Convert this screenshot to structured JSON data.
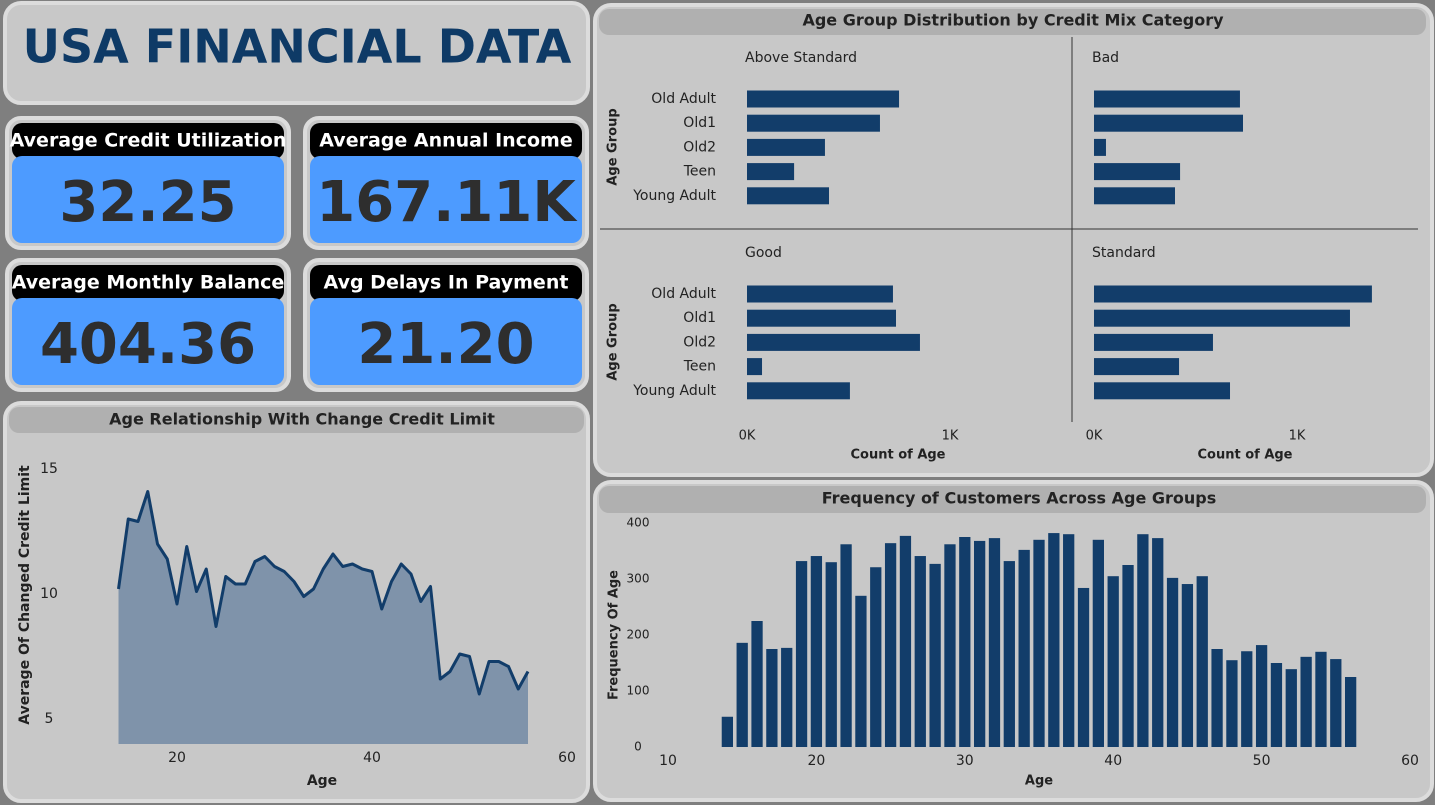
{
  "header": {
    "title": "USA FINANCIAL DATA"
  },
  "kpis": [
    {
      "label": "Average Credit Utilization",
      "value": "32.25"
    },
    {
      "label": "Average Annual Income",
      "value": "167.11K"
    },
    {
      "label": "Average Monthly Balance",
      "value": "404.36"
    },
    {
      "label": "Avg Delays In Payment",
      "value": "21.20"
    }
  ],
  "chart_data": [
    {
      "type": "barh",
      "title": "Age Group Distribution by Credit Mix Category",
      "xlabel": "Count of Age",
      "ylabel": "Age Group",
      "color": "#123d6a",
      "categories": [
        "Old Adult",
        "Old1",
        "Old2",
        "Teen",
        "Young Adult"
      ],
      "series": [
        {
          "name": "Above Standard",
          "values": [
            749,
            655,
            384,
            232,
            404
          ]
        },
        {
          "name": "Bad",
          "values": [
            719,
            734,
            59,
            424,
            399
          ]
        },
        {
          "name": "Good",
          "values": [
            719,
            734,
            852,
            74,
            507
          ]
        },
        {
          "name": "Standard",
          "values": [
            1369,
            1261,
            586,
            419,
            670
          ]
        }
      ],
      "xlim": [
        0,
        1600
      ],
      "xticks": [
        {
          "value": 0,
          "label": "0K"
        },
        {
          "value": 1000,
          "label": "1K"
        }
      ]
    },
    {
      "type": "area",
      "title": "Age Relationship With Change Credit Limit",
      "xlabel": "Age",
      "ylabel": "Average Of Changed Credit Limit",
      "color": "#123d6a",
      "fill": "#7f93aa",
      "x": [
        14,
        15,
        16,
        17,
        18,
        19,
        20,
        21,
        22,
        23,
        24,
        25,
        26,
        27,
        28,
        29,
        30,
        31,
        32,
        33,
        34,
        35,
        36,
        37,
        38,
        39,
        40,
        41,
        42,
        43,
        44,
        45,
        46,
        47,
        48,
        49,
        50,
        51,
        52,
        53,
        54,
        55,
        56
      ],
      "values": [
        10.2,
        13.0,
        12.9,
        14.1,
        12.0,
        11.4,
        9.6,
        11.9,
        10.1,
        11.0,
        8.7,
        10.7,
        10.4,
        10.4,
        11.3,
        11.5,
        11.1,
        10.9,
        10.5,
        9.9,
        10.2,
        11.0,
        11.6,
        11.1,
        11.2,
        11.0,
        10.9,
        9.4,
        10.5,
        11.2,
        10.8,
        9.7,
        10.3,
        6.6,
        6.9,
        7.6,
        7.5,
        6.0,
        7.3,
        7.3,
        7.1,
        6.2,
        6.9
      ],
      "xlim": [
        13,
        60
      ],
      "xticks": [
        20,
        40,
        60
      ],
      "ylim": [
        4,
        15.5
      ],
      "yticks": [
        5,
        10,
        15
      ]
    },
    {
      "type": "bar",
      "title": "Frequency of Customers Across Age Groups",
      "xlabel": "Age",
      "ylabel": "Frequency Of Age",
      "color": "#123d6a",
      "x": [
        14,
        15,
        16,
        17,
        18,
        19,
        20,
        21,
        22,
        23,
        24,
        25,
        26,
        27,
        28,
        29,
        30,
        31,
        32,
        33,
        34,
        35,
        36,
        37,
        38,
        39,
        40,
        41,
        42,
        43,
        44,
        45,
        46,
        47,
        48,
        49,
        50,
        51,
        52,
        53,
        54,
        55,
        56
      ],
      "values": [
        54,
        186,
        225,
        175,
        177,
        332,
        341,
        330,
        362,
        270,
        321,
        364,
        377,
        341,
        327,
        362,
        375,
        368,
        373,
        332,
        352,
        370,
        382,
        380,
        284,
        370,
        305,
        325,
        380,
        373,
        302,
        291,
        305,
        175,
        155,
        171,
        182,
        150,
        139,
        161,
        170,
        157,
        125
      ],
      "xlim": [
        10,
        60
      ],
      "xticks": [
        10,
        20,
        30,
        40,
        50,
        60
      ],
      "ylim": [
        0,
        410
      ],
      "yticks": [
        0,
        100,
        200,
        300,
        400
      ]
    }
  ]
}
